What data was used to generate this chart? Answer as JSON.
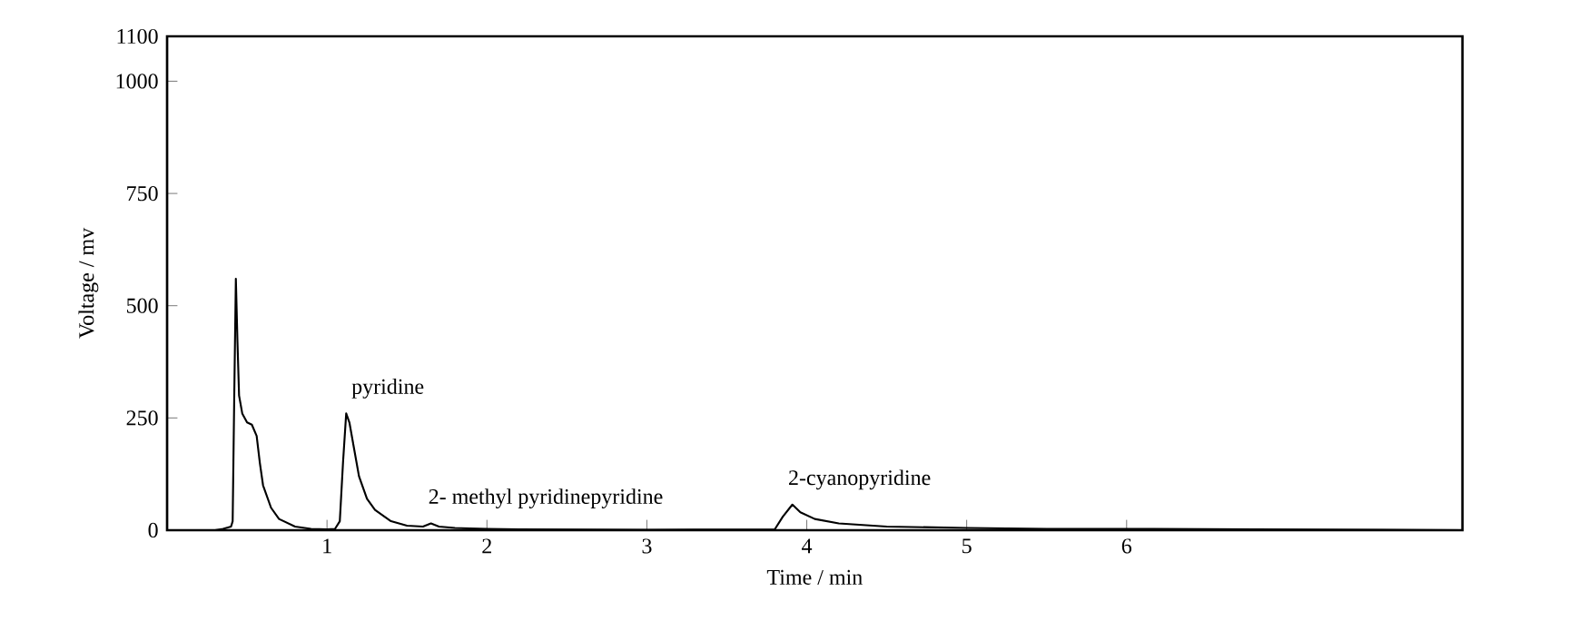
{
  "chart_data": {
    "type": "line",
    "xlabel": "Time / min",
    "ylabel": "Voltage / mv",
    "xlim": [
      0,
      8.1
    ],
    "xticks": [
      1,
      2,
      3,
      4,
      5,
      6
    ],
    "ylim": [
      0,
      1100
    ],
    "yticks": [
      0,
      250,
      500,
      750,
      1000,
      1100
    ],
    "grid": false,
    "marker": "none",
    "line_style": "solid",
    "annotations": [
      {
        "text": "pyridine",
        "x": 1.12,
        "y": 260
      },
      {
        "text": "2- methyl pyridinepyridine",
        "x": 1.6,
        "y": 15
      },
      {
        "text": "2-cyanopyridine",
        "x": 3.85,
        "y": 57
      }
    ],
    "series": [
      {
        "color": "#000000",
        "x": [
          0.0,
          0.3,
          0.35,
          0.4,
          0.41,
          0.42,
          0.43,
          0.44,
          0.45,
          0.47,
          0.5,
          0.53,
          0.56,
          0.58,
          0.6,
          0.65,
          0.7,
          0.8,
          0.9,
          1.0,
          1.05,
          1.08,
          1.1,
          1.12,
          1.14,
          1.17,
          1.2,
          1.25,
          1.3,
          1.4,
          1.5,
          1.6,
          1.65,
          1.7,
          1.8,
          2.0,
          2.2,
          3.0,
          3.8,
          3.85,
          3.91,
          3.96,
          4.05,
          4.2,
          4.5,
          5.0,
          5.5,
          6.0,
          6.8,
          8.1
        ],
        "values": [
          0,
          0,
          3,
          8,
          20,
          300,
          560,
          420,
          300,
          260,
          240,
          235,
          210,
          150,
          100,
          50,
          25,
          8,
          3,
          2,
          3,
          20,
          150,
          260,
          240,
          180,
          120,
          70,
          45,
          20,
          10,
          8,
          15,
          8,
          5,
          3,
          2,
          1,
          2,
          30,
          57,
          40,
          25,
          15,
          8,
          5,
          3,
          3,
          2,
          0
        ]
      }
    ]
  }
}
